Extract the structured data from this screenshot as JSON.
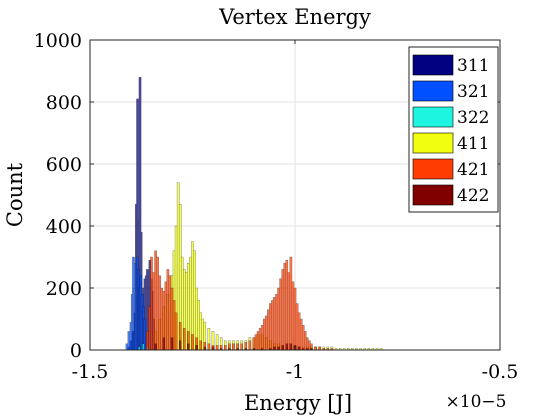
{
  "chart_data": {
    "type": "bar",
    "title": "Vertex Energy",
    "xlabel": "Energy [J]",
    "ylabel": "Count",
    "x_exponent_label": "×10−5",
    "xlim": [
      -1.5,
      -0.5
    ],
    "ylim": [
      0,
      1000
    ],
    "xticks": [
      "-1.5",
      "-1",
      "-0.5"
    ],
    "yticks": [
      "0",
      "200",
      "400",
      "600",
      "800",
      "1000"
    ],
    "grid": true,
    "legend_position": "top-right",
    "series": [
      {
        "name": "311",
        "color": "#000080",
        "x": [
          -1.405,
          -1.4,
          -1.395,
          -1.39,
          -1.387,
          -1.384,
          -1.381,
          -1.378,
          -1.375,
          -1.372,
          -1.369,
          -1.366,
          -1.363,
          -1.36,
          -1.357,
          -1.354,
          -1.351,
          -1.348,
          -1.345
        ],
        "values": [
          10,
          30,
          60,
          120,
          470,
          810,
          420,
          880,
          380,
          180,
          200,
          230,
          240,
          260,
          240,
          290,
          230,
          190,
          100
        ]
      },
      {
        "name": "321",
        "color": "#0050ff",
        "x": [
          -1.41,
          -1.405,
          -1.4,
          -1.397,
          -1.394,
          -1.391,
          -1.388,
          -1.385,
          -1.382,
          -1.379,
          -1.376,
          -1.373,
          -1.37,
          -1.367
        ],
        "values": [
          20,
          60,
          90,
          180,
          300,
          200,
          280,
          300,
          260,
          200,
          240,
          180,
          140,
          100
        ]
      },
      {
        "name": "322",
        "color": "#1ef5e0",
        "x": [
          -1.38,
          -1.37,
          -1.36
        ],
        "values": [
          10,
          20,
          10
        ]
      },
      {
        "name": "411",
        "color": "#f0ff10",
        "x": [
          -1.34,
          -1.33,
          -1.32,
          -1.31,
          -1.3,
          -1.295,
          -1.29,
          -1.285,
          -1.28,
          -1.275,
          -1.27,
          -1.265,
          -1.26,
          -1.255,
          -1.25,
          -1.245,
          -1.24,
          -1.235,
          -1.23,
          -1.225,
          -1.22,
          -1.21,
          -1.2,
          -1.19,
          -1.18,
          -1.17,
          -1.16,
          -1.15,
          -1.14,
          -1.13,
          -1.12,
          -1.11,
          -1.1,
          -1.09,
          -1.08,
          -1.07,
          -1.06,
          -1.05,
          -1.04,
          -1.03,
          -1.02,
          -1.01,
          -1.0,
          -0.99,
          -0.98,
          -0.97,
          -0.96,
          -0.95,
          -0.94,
          -0.93,
          -0.92,
          -0.91,
          -0.9,
          -0.89,
          -0.88,
          -0.87,
          -0.86,
          -0.85,
          -0.84,
          -0.83,
          -0.82,
          -0.81,
          -0.8,
          -0.79
        ],
        "values": [
          60,
          100,
          140,
          180,
          240,
          320,
          400,
          540,
          470,
          300,
          260,
          250,
          280,
          300,
          350,
          320,
          200,
          160,
          120,
          100,
          90,
          70,
          60,
          50,
          40,
          30,
          30,
          30,
          30,
          30,
          30,
          40,
          40,
          50,
          50,
          40,
          30,
          20,
          20,
          10,
          10,
          10,
          10,
          10,
          10,
          10,
          10,
          10,
          10,
          10,
          10,
          10,
          5,
          5,
          5,
          5,
          5,
          5,
          5,
          5,
          5,
          5,
          5,
          5
        ]
      },
      {
        "name": "421",
        "color": "#ff3d00",
        "x": [
          -1.36,
          -1.355,
          -1.35,
          -1.345,
          -1.34,
          -1.335,
          -1.33,
          -1.325,
          -1.32,
          -1.315,
          -1.31,
          -1.305,
          -1.3,
          -1.295,
          -1.29,
          -1.28,
          -1.27,
          -1.26,
          -1.25,
          -1.24,
          -1.23,
          -1.22,
          -1.21,
          -1.2,
          -1.19,
          -1.18,
          -1.17,
          -1.16,
          -1.15,
          -1.14,
          -1.13,
          -1.12,
          -1.11,
          -1.1,
          -1.095,
          -1.09,
          -1.085,
          -1.08,
          -1.075,
          -1.07,
          -1.065,
          -1.06,
          -1.055,
          -1.05,
          -1.045,
          -1.04,
          -1.035,
          -1.03,
          -1.025,
          -1.02,
          -1.015,
          -1.01,
          -1.005,
          -1.0,
          -0.995,
          -0.99,
          -0.985,
          -0.98,
          -0.975,
          -0.97,
          -0.965,
          -0.96,
          -0.95,
          -0.94,
          -0.93,
          -0.92,
          -0.91
        ],
        "values": [
          60,
          140,
          300,
          250,
          320,
          300,
          240,
          200,
          190,
          220,
          260,
          240,
          200,
          160,
          120,
          90,
          70,
          60,
          50,
          40,
          30,
          25,
          20,
          15,
          15,
          15,
          15,
          20,
          20,
          20,
          20,
          25,
          30,
          40,
          50,
          60,
          70,
          80,
          100,
          110,
          130,
          150,
          160,
          170,
          180,
          200,
          230,
          260,
          280,
          290,
          250,
          300,
          220,
          200,
          150,
          120,
          100,
          80,
          60,
          40,
          30,
          20,
          10,
          10,
          5,
          5,
          5
        ]
      },
      {
        "name": "422",
        "color": "#800000",
        "x": [
          -1.34,
          -1.32,
          -1.3,
          -1.28,
          -1.26,
          -1.24,
          -1.22,
          -1.2,
          -1.18,
          -1.16,
          -1.14,
          -1.12,
          -1.1,
          -1.08,
          -1.06,
          -1.05,
          -1.04,
          -1.03,
          -1.02,
          -1.01,
          -1.0,
          -0.99,
          -0.98,
          -0.97,
          -0.96
        ],
        "values": [
          20,
          40,
          40,
          30,
          20,
          15,
          10,
          10,
          5,
          5,
          5,
          5,
          5,
          5,
          5,
          10,
          10,
          15,
          20,
          20,
          15,
          10,
          5,
          5,
          5
        ]
      }
    ]
  }
}
